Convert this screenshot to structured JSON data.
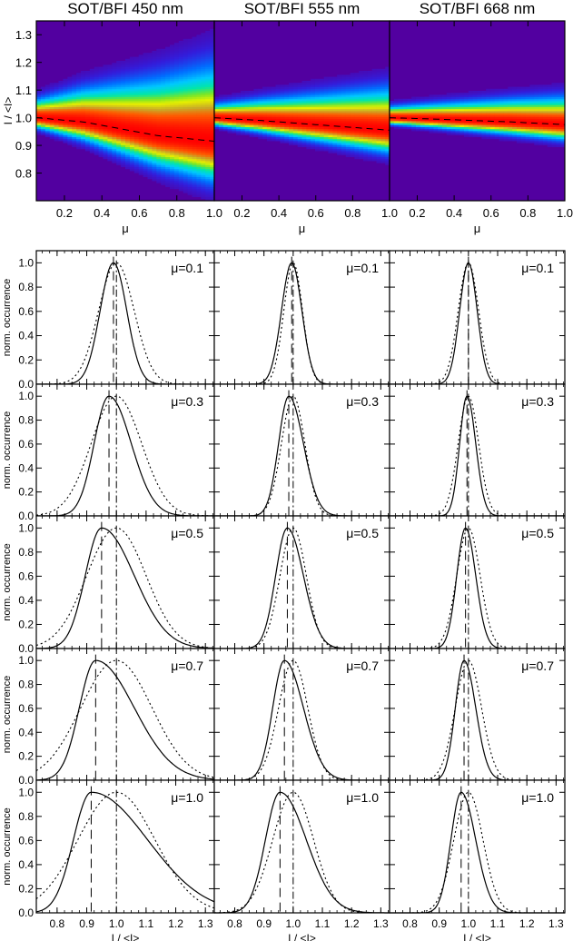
{
  "chart_data": {
    "type": "figure",
    "top_row": {
      "type": "heatmap",
      "ylabel": "I / <I>",
      "xlabel": "μ",
      "xlim": [
        0.05,
        1.0
      ],
      "ylim": [
        0.7,
        1.35
      ],
      "xticks": [
        "0.2",
        "0.4",
        "0.6",
        "0.8",
        "1.0"
      ],
      "yticks": [
        "0.8",
        "0.9",
        "1.0",
        "1.1",
        "1.2",
        "1.3"
      ],
      "panels": [
        {
          "title": "SOT/BFI 450 nm",
          "peak_intensity_mu": [
            [
              0.05,
              1.0
            ],
            [
              0.3,
              0.985
            ],
            [
              0.5,
              0.96
            ],
            [
              0.7,
              0.935
            ],
            [
              1.0,
              0.915
            ]
          ],
          "width_low_mu": 0.04,
          "width_high_mu": 0.16
        },
        {
          "title": "SOT/BFI 555 nm",
          "peak_intensity_mu": [
            [
              0.05,
              1.0
            ],
            [
              0.3,
              0.99
            ],
            [
              0.5,
              0.98
            ],
            [
              0.7,
              0.97
            ],
            [
              1.0,
              0.955
            ]
          ],
          "width_low_mu": 0.03,
          "width_high_mu": 0.09
        },
        {
          "title": "SOT/BFI 668 nm",
          "peak_intensity_mu": [
            [
              0.05,
              1.0
            ],
            [
              0.3,
              0.995
            ],
            [
              0.5,
              0.99
            ],
            [
              0.7,
              0.985
            ],
            [
              1.0,
              0.975
            ]
          ],
          "width_low_mu": 0.025,
          "width_high_mu": 0.06
        }
      ]
    },
    "histograms": {
      "type": "line",
      "ylabel": "norm. occurrence",
      "xlabel": "I / <I>",
      "ylim": [
        0,
        1.1
      ],
      "yticks": [
        "0.0",
        "0.2",
        "0.4",
        "0.6",
        "0.8",
        "1.0"
      ],
      "columns": [
        {
          "xlim": [
            0.73,
            1.33
          ],
          "xticks": [
            "0.8",
            "0.9",
            "1.0",
            "1.1",
            "1.2",
            "1.3"
          ]
        },
        {
          "xlim": [
            0.73,
            1.33
          ],
          "xticks": [
            "0.8",
            "0.9",
            "1.0",
            "1.1",
            "1.2",
            "1.3"
          ]
        },
        {
          "xlim": [
            0.73,
            1.33
          ],
          "xticks": [
            "0.8",
            "0.9",
            "1.0",
            "1.1",
            "1.2",
            "1.3"
          ]
        }
      ],
      "rows": [
        {
          "label": "μ=0.1",
          "panels": [
            {
              "peak": 0.99,
              "sigma_left": 0.045,
              "sigma_right": 0.045,
              "dotted_peak": 1.0,
              "dotted_sigma": 0.06
            },
            {
              "peak": 0.995,
              "sigma_left": 0.035,
              "sigma_right": 0.035,
              "dotted_peak": 1.0,
              "dotted_sigma": 0.032
            },
            {
              "peak": 1.0,
              "sigma_left": 0.03,
              "sigma_right": 0.03,
              "dotted_peak": 1.0,
              "dotted_sigma": 0.035
            }
          ]
        },
        {
          "label": "μ=0.3",
          "panels": [
            {
              "peak": 0.975,
              "sigma_left": 0.05,
              "sigma_right": 0.075,
              "dotted_peak": 1.0,
              "dotted_sigma": 0.085
            },
            {
              "peak": 0.985,
              "sigma_left": 0.035,
              "sigma_right": 0.05,
              "dotted_peak": 1.0,
              "dotted_sigma": 0.04
            },
            {
              "peak": 0.995,
              "sigma_left": 0.025,
              "sigma_right": 0.03,
              "dotted_peak": 1.0,
              "dotted_sigma": 0.035
            }
          ]
        },
        {
          "label": "μ=0.5",
          "panels": [
            {
              "peak": 0.95,
              "sigma_left": 0.055,
              "sigma_right": 0.11,
              "dotted_peak": 1.0,
              "dotted_sigma": 0.1
            },
            {
              "peak": 0.98,
              "sigma_left": 0.04,
              "sigma_right": 0.055,
              "dotted_peak": 1.0,
              "dotted_sigma": 0.045
            },
            {
              "peak": 0.99,
              "sigma_left": 0.03,
              "sigma_right": 0.035,
              "dotted_peak": 1.0,
              "dotted_sigma": 0.04
            }
          ]
        },
        {
          "label": "μ=0.7",
          "panels": [
            {
              "peak": 0.93,
              "sigma_left": 0.055,
              "sigma_right": 0.13,
              "dotted_peak": 1.0,
              "dotted_sigma": 0.12
            },
            {
              "peak": 0.97,
              "sigma_left": 0.04,
              "sigma_right": 0.065,
              "dotted_peak": 1.0,
              "dotted_sigma": 0.05
            },
            {
              "peak": 0.985,
              "sigma_left": 0.03,
              "sigma_right": 0.04,
              "dotted_peak": 1.0,
              "dotted_sigma": 0.045
            }
          ]
        },
        {
          "label": "μ=1.0",
          "panels": [
            {
              "peak": 0.915,
              "sigma_left": 0.06,
              "sigma_right": 0.19,
              "dotted_peak": 1.0,
              "dotted_sigma": 0.13
            },
            {
              "peak": 0.955,
              "sigma_left": 0.05,
              "sigma_right": 0.09,
              "dotted_peak": 1.0,
              "dotted_sigma": 0.07
            },
            {
              "peak": 0.975,
              "sigma_left": 0.035,
              "sigma_right": 0.05,
              "dotted_peak": 1.0,
              "dotted_sigma": 0.05
            }
          ]
        }
      ]
    }
  }
}
